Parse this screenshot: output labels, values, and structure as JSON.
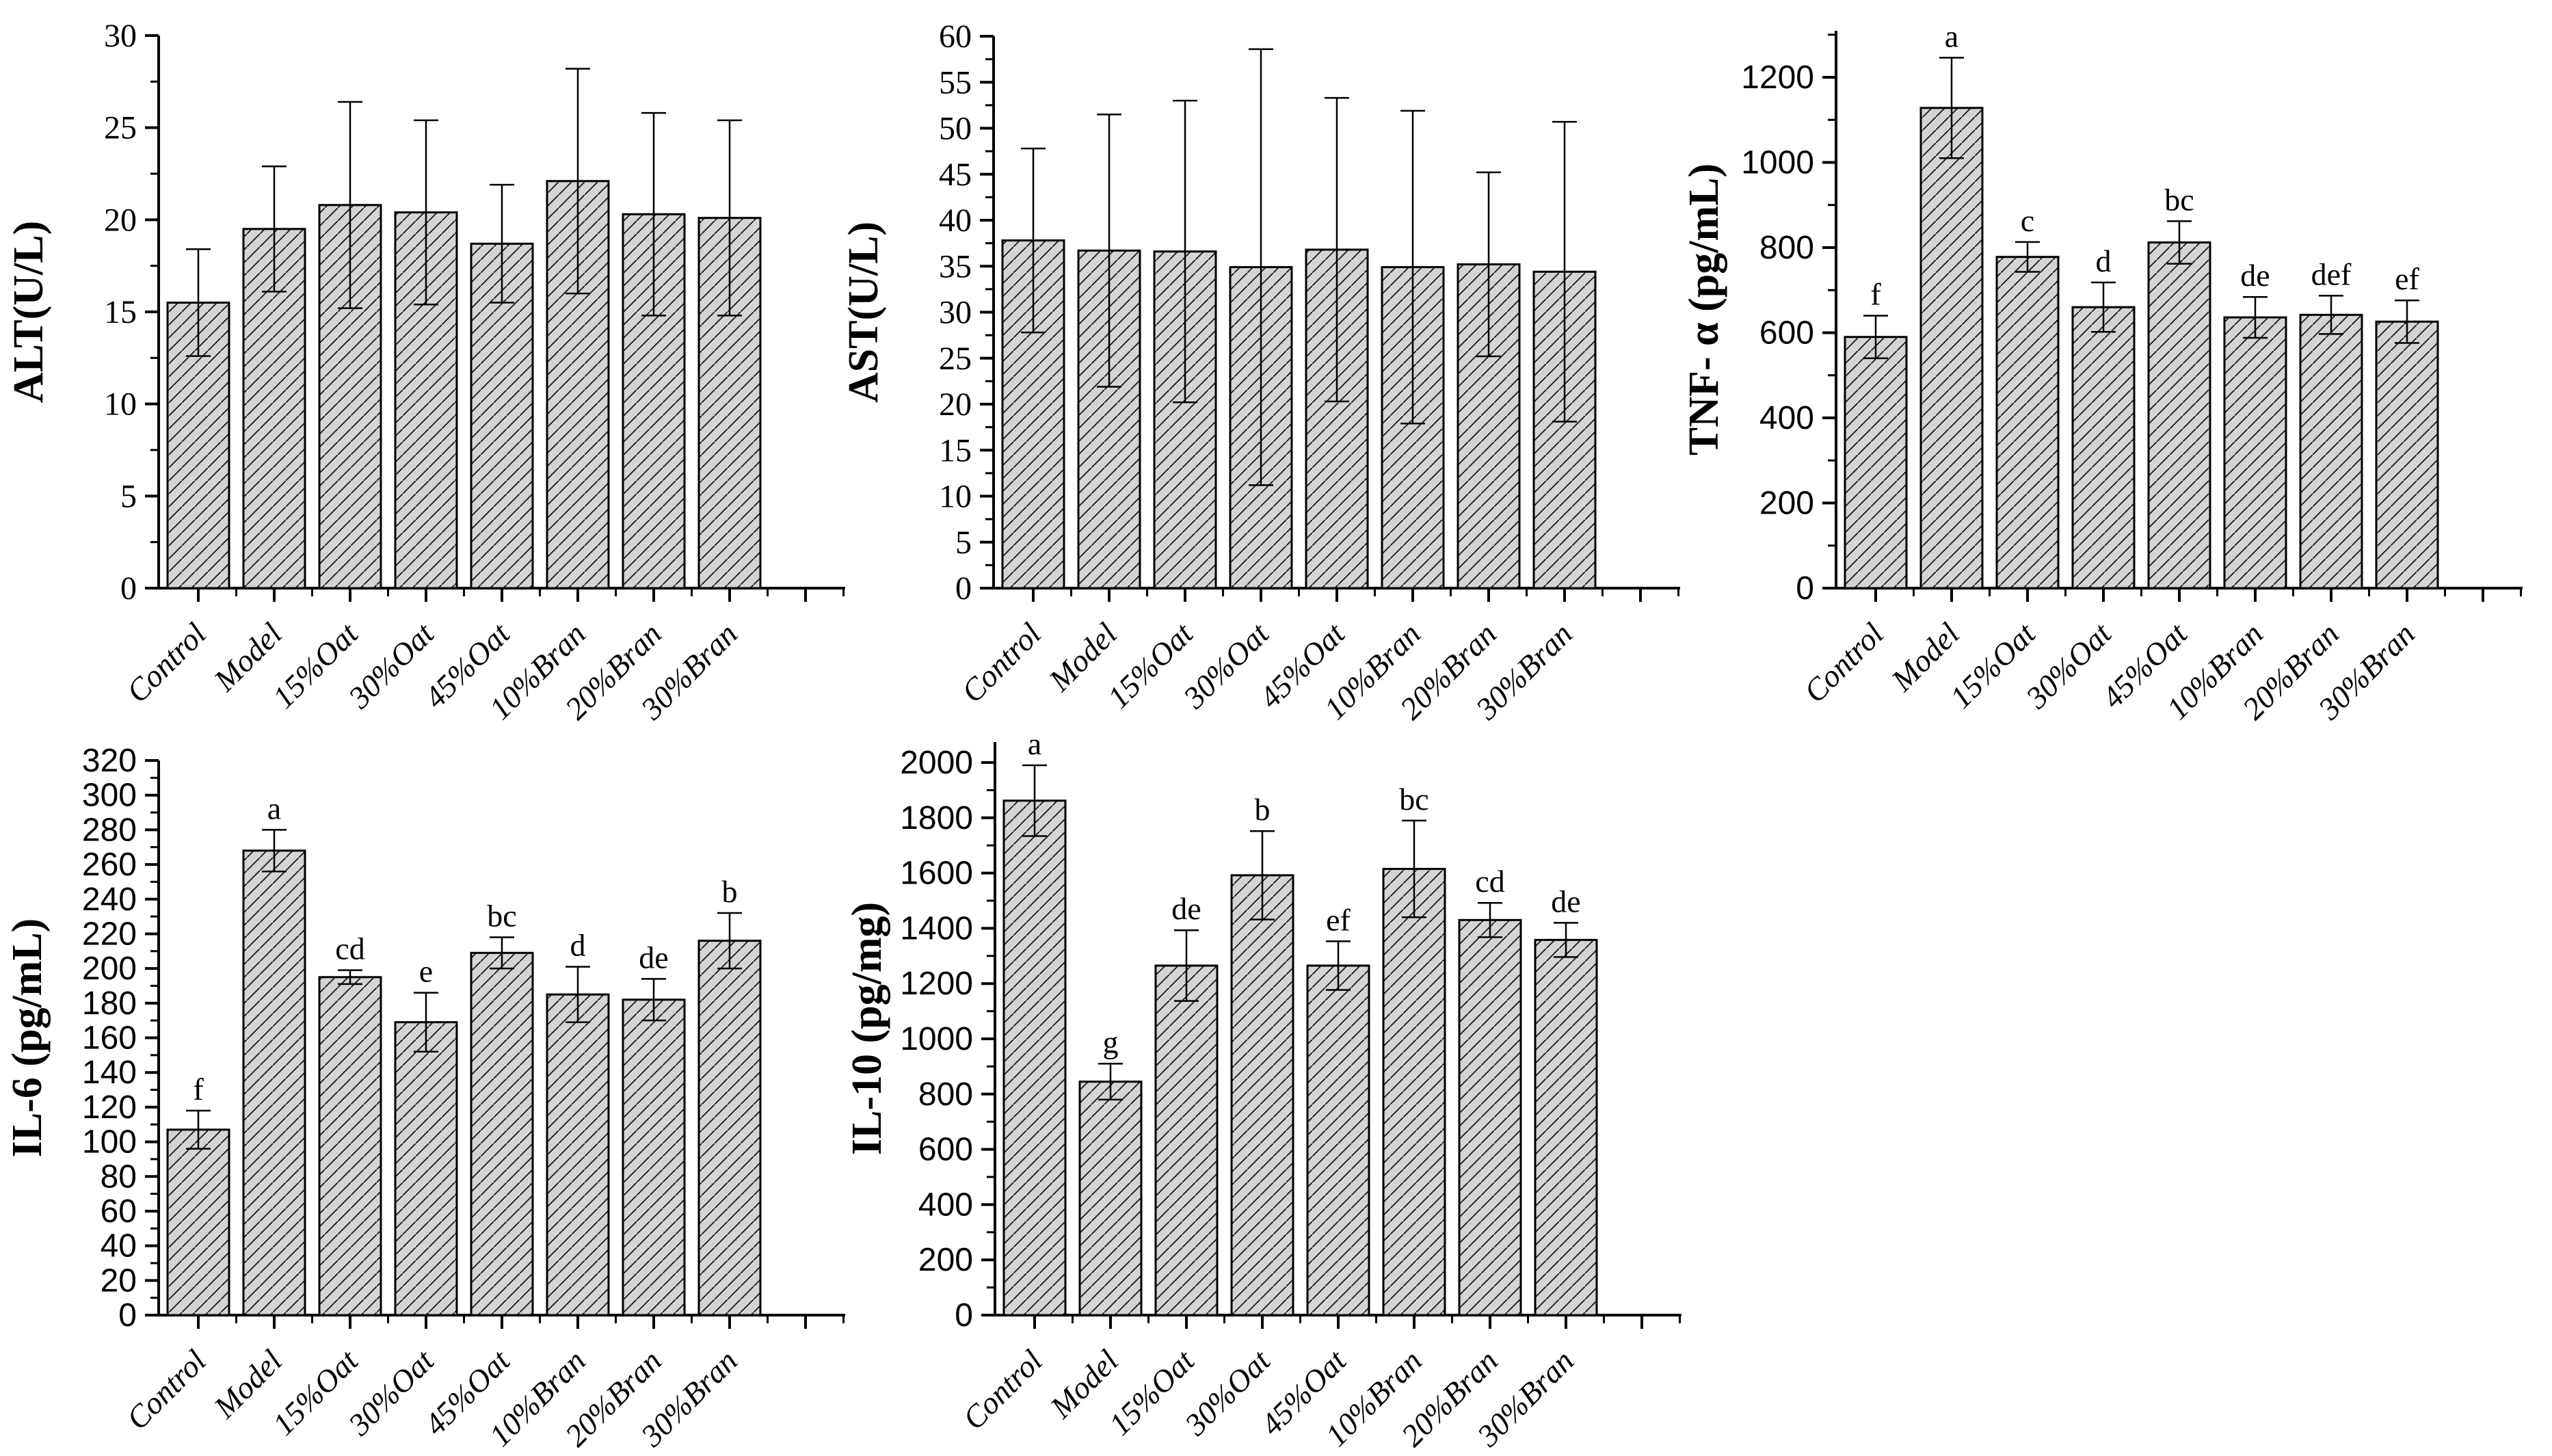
{
  "figure": {
    "background": "#ffffff",
    "bar_fill": "#d4d4d4",
    "hatch_color": "#161616",
    "axis_color": "#000000",
    "categories": [
      "Control",
      "Model",
      "15%Oat",
      "30%Oat",
      "45%Oat",
      "10%Bran",
      "20%Bran",
      "30%Bran"
    ]
  },
  "chart_data": [
    {
      "id": "alt",
      "type": "bar",
      "title": "",
      "ylabel": "ALT(U/L)",
      "xlabel": "",
      "categories": [
        "Control",
        "Model",
        "15%Oat",
        "30%Oat",
        "45%Oat",
        "10%Bran",
        "20%Bran",
        "30%Bran"
      ],
      "values": [
        15.5,
        19.5,
        20.8,
        20.4,
        18.7,
        22.1,
        20.3,
        20.1
      ],
      "errors": [
        2.9,
        3.4,
        5.6,
        5.0,
        3.2,
        6.1,
        5.5,
        5.3
      ],
      "letters": null,
      "ylim": [
        0,
        30
      ],
      "ytick_max": 30,
      "ytick_step": 5,
      "yminor_step": 2.5,
      "tick_font": "serif",
      "grid": false,
      "legend": "none"
    },
    {
      "id": "ast",
      "type": "bar",
      "title": "",
      "ylabel": "AST(U/L)",
      "xlabel": "",
      "categories": [
        "Control",
        "Model",
        "15%Oat",
        "30%Oat",
        "45%Oat",
        "10%Bran",
        "20%Bran",
        "30%Bran"
      ],
      "values": [
        37.8,
        36.7,
        36.6,
        34.9,
        36.8,
        34.9,
        35.2,
        34.4
      ],
      "errors": [
        10.0,
        14.8,
        16.4,
        23.7,
        16.5,
        17.0,
        10.0,
        16.3
      ],
      "letters": null,
      "ylim": [
        0,
        60
      ],
      "ytick_max": 60,
      "ytick_step": 5,
      "yminor_step": 2.5,
      "tick_font": "serif",
      "grid": false,
      "legend": "none"
    },
    {
      "id": "tnf",
      "type": "bar",
      "title": "",
      "ylabel": "TNF- α (pg/mL)",
      "xlabel": "",
      "categories": [
        "Control",
        "Model",
        "15%Oat",
        "30%Oat",
        "45%Oat",
        "10%Bran",
        "20%Bran",
        "30%Bran"
      ],
      "values": [
        590,
        1128,
        778,
        660,
        812,
        636,
        642,
        626
      ],
      "errors": [
        50,
        118,
        35,
        58,
        50,
        48,
        45,
        50
      ],
      "letters": [
        "f",
        "a",
        "c",
        "d",
        "bc",
        "de",
        "def",
        "ef"
      ],
      "ylim": [
        0,
        1310
      ],
      "ytick_max": 1200,
      "ytick_step": 200,
      "yminor_step": 100,
      "tick_font": "sans",
      "grid": false,
      "legend": "none"
    },
    {
      "id": "il6",
      "type": "bar",
      "title": "",
      "ylabel": "IL-6 (pg/mL)",
      "xlabel": "",
      "categories": [
        "Control",
        "Model",
        "15%Oat",
        "30%Oat",
        "45%Oat",
        "10%Bran",
        "20%Bran",
        "30%Bran"
      ],
      "values": [
        107,
        268,
        195,
        169,
        209,
        185,
        182,
        216
      ],
      "errors": [
        11,
        12,
        4,
        17,
        9,
        16,
        12,
        16
      ],
      "letters": [
        "f",
        "a",
        "cd",
        "e",
        "bc",
        "d",
        "de",
        "b"
      ],
      "ylim": [
        0,
        320
      ],
      "ytick_max": 320,
      "ytick_step": 20,
      "yminor_step": 10,
      "tick_font": "sans",
      "grid": false,
      "legend": "none"
    },
    {
      "id": "il10",
      "type": "bar",
      "title": "",
      "ylabel": "IL-10 (pg/mg)",
      "xlabel": "",
      "categories": [
        "Control",
        "Model",
        "15%Oat",
        "30%Oat",
        "45%Oat",
        "10%Bran",
        "20%Bran",
        "30%Bran"
      ],
      "values": [
        1862,
        845,
        1265,
        1592,
        1265,
        1615,
        1430,
        1358
      ],
      "errors": [
        128,
        65,
        128,
        160,
        88,
        175,
        62,
        62
      ],
      "letters": [
        "a",
        "g",
        "de",
        "b",
        "ef",
        "bc",
        "cd",
        "de"
      ],
      "ylim": [
        0,
        2075
      ],
      "ytick_max": 2000,
      "ytick_step": 200,
      "yminor_step": 100,
      "tick_font": "sans",
      "grid": false,
      "legend": "none"
    }
  ]
}
